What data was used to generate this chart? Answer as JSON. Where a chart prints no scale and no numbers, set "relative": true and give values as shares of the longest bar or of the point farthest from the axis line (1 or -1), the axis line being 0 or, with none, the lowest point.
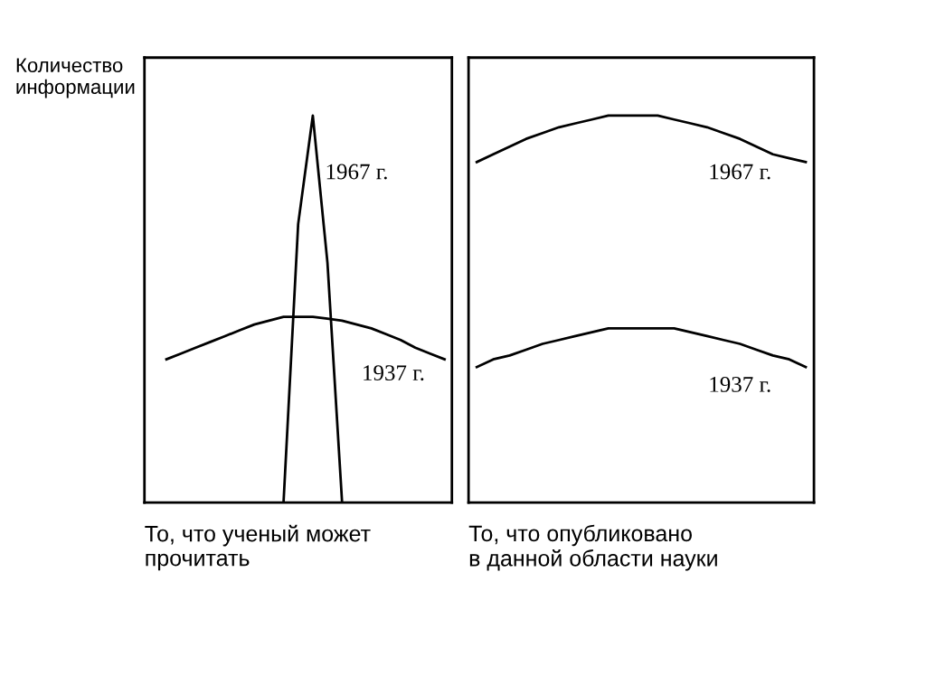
{
  "chart_data": [
    {
      "type": "line",
      "relative": true,
      "ylabel": "Количество информации",
      "xlabel": "То, что ученый может\nпрочитать",
      "legend": false,
      "tick_labels": false,
      "marker": "none",
      "line_style": "solid",
      "categories": [
        null,
        null,
        null,
        null,
        null,
        null,
        null,
        null,
        null,
        null,
        null,
        null,
        null,
        null,
        null,
        null,
        null,
        null,
        null,
        null,
        null
      ],
      "series": [
        {
          "name": "1967 г.",
          "color": "#000000",
          "values": [
            null,
            null,
            null,
            null,
            null,
            null,
            null,
            null,
            null,
            0,
            0.72,
            1.0,
            0.62,
            0,
            null,
            null,
            null,
            null,
            null,
            null,
            null
          ]
        },
        {
          "name": "1937 г.",
          "color": "#000000",
          "values": [
            null,
            0.37,
            0.385,
            0.4,
            0.415,
            0.43,
            0.445,
            0.46,
            0.47,
            0.48,
            0.48,
            0.48,
            0.475,
            0.47,
            0.46,
            0.45,
            0.435,
            0.42,
            0.4,
            0.385,
            0.37
          ]
        }
      ]
    },
    {
      "type": "line",
      "relative": true,
      "xlabel": "То, что опубликовано\nв данной области науки",
      "legend": false,
      "tick_labels": false,
      "marker": "none",
      "line_style": "solid",
      "categories": [
        null,
        null,
        null,
        null,
        null,
        null,
        null,
        null,
        null,
        null,
        null,
        null,
        null,
        null,
        null,
        null,
        null,
        null,
        null,
        null,
        null
      ],
      "series": [
        {
          "name": "1967 г.",
          "color": "#000000",
          "values": [
            0.88,
            0.9,
            0.92,
            0.94,
            0.955,
            0.97,
            0.98,
            0.99,
            1.0,
            1.0,
            1.0,
            1.0,
            0.99,
            0.98,
            0.97,
            0.955,
            0.94,
            0.92,
            0.9,
            0.89,
            0.88
          ]
        },
        {
          "name": "1937 г.",
          "color": "#000000",
          "values": [
            0.35,
            0.37,
            0.38,
            0.395,
            0.41,
            0.42,
            0.43,
            0.44,
            0.45,
            0.45,
            0.45,
            0.45,
            0.45,
            0.44,
            0.43,
            0.42,
            0.41,
            0.395,
            0.38,
            0.37,
            0.35
          ]
        }
      ]
    }
  ]
}
